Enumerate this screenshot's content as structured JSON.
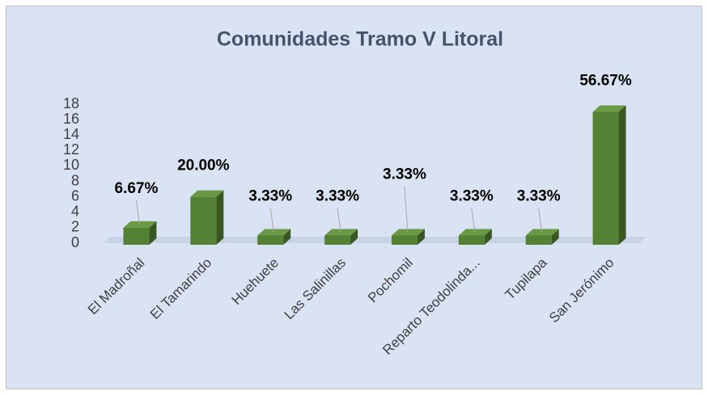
{
  "chart_data": {
    "type": "bar3d",
    "title": "Comunidades Tramo V Litoral",
    "categories": [
      "El Madroñal",
      "El Tamarindo",
      "Huehuete",
      "Las Salinillas",
      "Pochomil",
      "Reparto Teodolinda...",
      "Tupilapa",
      "San Jerónimo"
    ],
    "values": [
      2,
      6,
      1,
      1,
      1,
      1,
      1,
      17
    ],
    "data_labels": [
      "6.67%",
      "20.00%",
      "3.33%",
      "3.33%",
      "3.33%",
      "3.33%",
      "3.33%",
      "56.67%"
    ],
    "color": "#548235",
    "ylim": [
      0,
      18
    ],
    "yticks": [
      0,
      2,
      4,
      6,
      8,
      10,
      12,
      14,
      16,
      18
    ],
    "grid": false
  }
}
